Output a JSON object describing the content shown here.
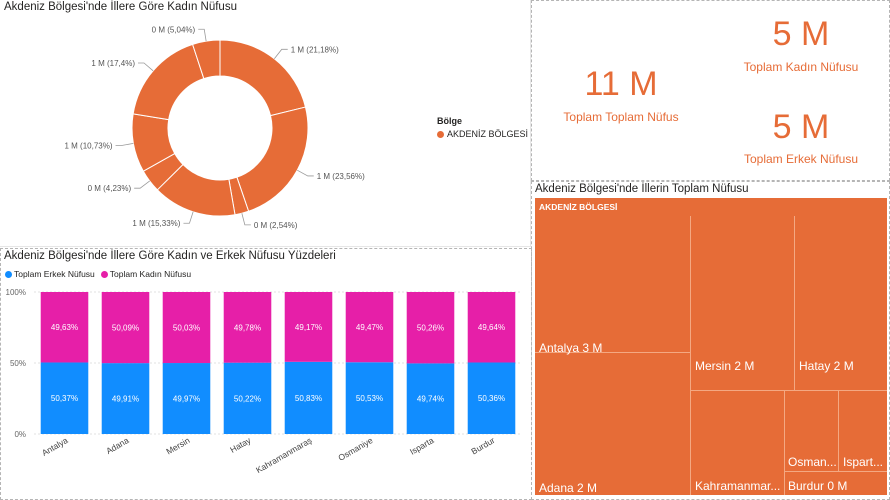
{
  "donut": {
    "title": "Akdeniz Bölgesi'nde İllere Göre Kadın Nüfusu",
    "legend_title": "Bölge",
    "legend_item": "AKDENİZ BÖLGESİ"
  },
  "cards": {
    "total_population_value": "11 M",
    "total_population_label": "Toplam Toplam Nüfus",
    "female_value": "5 M",
    "female_label": "Toplam Kadın Nüfusu",
    "male_value": "5 M",
    "male_label": "Toplam Erkek Nüfusu"
  },
  "stacked": {
    "title": "Akdeniz Bölgesi'nde İllere Göre Kadın ve Erkek Nüfusu Yüzdeleri",
    "legend": [
      "Toplam Erkek Nüfusu",
      "Toplam Kadın Nüfusu"
    ]
  },
  "treemap": {
    "title": "Akdeniz Bölgesi'nde İllerin Toplam Nüfusu",
    "group_label": "AKDENİZ BÖLGESİ",
    "cells": [
      {
        "name": "Antalya 3 M"
      },
      {
        "name": "Adana 2 M"
      },
      {
        "name": "Mersin 2 M"
      },
      {
        "name": "Hatay 2 M"
      },
      {
        "name": "Kahramanmar..."
      },
      {
        "name": "Osman..."
      },
      {
        "name": "Ispart..."
      },
      {
        "name": "Burdur 0 M"
      }
    ]
  },
  "chart_data": [
    {
      "type": "pie",
      "title": "Akdeniz Bölgesi'nde İllere Göre Kadın Nüfusu",
      "legend_title": "Bölge",
      "legend": [
        "AKDENİZ BÖLGESİ"
      ],
      "color": "#e66c37",
      "labels": [
        "1 M (21,18%)",
        "1 M (23,56%)",
        "0 M (2,54%)",
        "1 M (15,33%)",
        "0 M (4,23%)",
        "1 M (10,73%)",
        "1 M (17,4%)",
        "0 M (5,04%)"
      ],
      "values": [
        21.18,
        23.56,
        2.54,
        15.33,
        4.23,
        10.73,
        17.4,
        5.04
      ]
    },
    {
      "type": "bar",
      "title": "Akdeniz Bölgesi'nde İllere Göre Kadın ve Erkek Nüfusu Yüzdeleri",
      "categories": [
        "Antalya",
        "Adana",
        "Mersin",
        "Hatay",
        "Kahramanmaraş",
        "Osmaniye",
        "Isparta",
        "Burdur"
      ],
      "yticks": [
        "0%",
        "50%",
        "100%"
      ],
      "ylim": [
        0,
        100
      ],
      "series": [
        {
          "name": "Toplam Erkek Nüfusu",
          "color": "#118dff",
          "values": [
            50.37,
            49.91,
            49.97,
            50.22,
            50.83,
            50.53,
            49.74,
            50.36
          ],
          "labels": [
            "50,37%",
            "49,91%",
            "49,97%",
            "50,22%",
            "50,83%",
            "50,53%",
            "49,74%",
            "50,36%"
          ]
        },
        {
          "name": "Toplam Kadın Nüfusu",
          "color": "#e61fa8",
          "values": [
            49.63,
            50.09,
            50.03,
            49.78,
            49.17,
            49.47,
            50.26,
            49.64
          ],
          "labels": [
            "49,63%",
            "50,09%",
            "50,03%",
            "49,78%",
            "49,17%",
            "49,47%",
            "50,26%",
            "49,64%"
          ]
        }
      ]
    }
  ]
}
